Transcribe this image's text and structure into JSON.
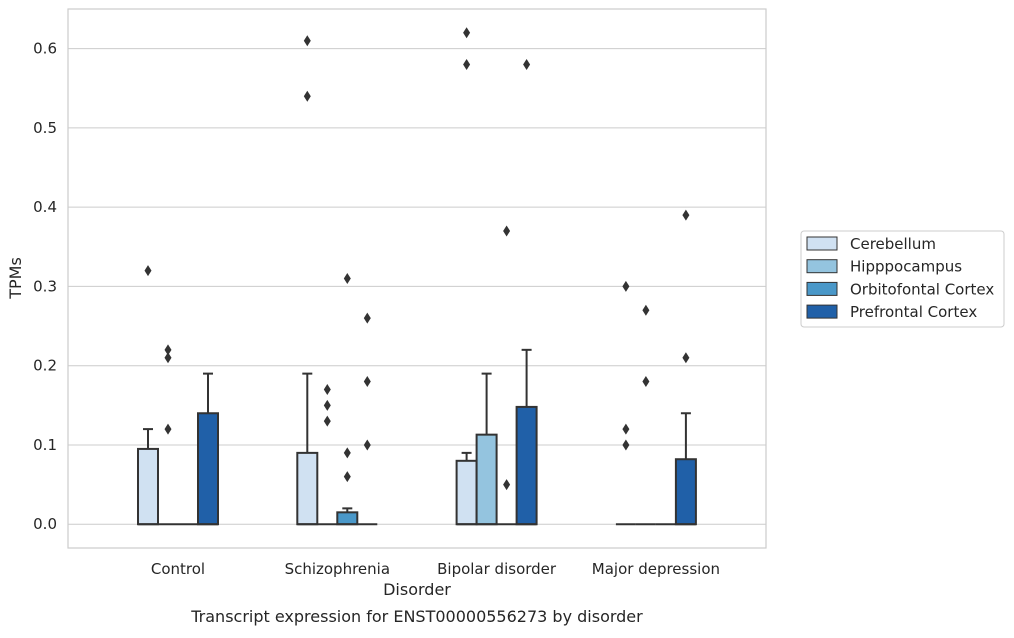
{
  "chart_data": {
    "type": "box",
    "title": "Transcript expression for ENST00000556273 by disorder",
    "xlabel": "Disorder",
    "ylabel": "TPMs",
    "ylim": [
      -0.03,
      0.65
    ],
    "yticks": [
      0.0,
      0.1,
      0.2,
      0.3,
      0.4,
      0.5,
      0.6
    ],
    "ytick_labels": [
      "0.0",
      "0.1",
      "0.2",
      "0.3",
      "0.4",
      "0.5",
      "0.6"
    ],
    "grid": "horizontal",
    "legend_position": "right",
    "categories": [
      "Control",
      "Schizophrenia",
      "Bipolar disorder",
      "Major depression"
    ],
    "series": [
      {
        "name": "Cerebellum",
        "color": "#d0e1f2",
        "boxes": [
          {
            "q1": 0.0,
            "median": 0.0,
            "q3": 0.095,
            "whisker_low": 0.0,
            "whisker_high": 0.12,
            "outliers": [
              0.32
            ]
          },
          {
            "q1": 0.0,
            "median": 0.0,
            "q3": 0.09,
            "whisker_low": 0.0,
            "whisker_high": 0.19,
            "outliers": [
              0.54,
              0.61
            ]
          },
          {
            "q1": 0.0,
            "median": 0.0,
            "q3": 0.08,
            "whisker_low": 0.0,
            "whisker_high": 0.09,
            "outliers": [
              0.58,
              0.62
            ]
          },
          {
            "q1": 0.0,
            "median": 0.0,
            "q3": 0.0,
            "whisker_low": 0.0,
            "whisker_high": 0.0,
            "outliers": [
              0.1,
              0.12,
              0.3
            ]
          }
        ]
      },
      {
        "name": "Hipppocampus",
        "color": "#94c4df",
        "boxes": [
          {
            "q1": 0.0,
            "median": 0.0,
            "q3": 0.0,
            "whisker_low": 0.0,
            "whisker_high": 0.0,
            "outliers": [
              0.12,
              0.21,
              0.22
            ]
          },
          {
            "q1": 0.0,
            "median": 0.0,
            "q3": 0.0,
            "whisker_low": 0.0,
            "whisker_high": 0.0,
            "outliers": [
              0.13,
              0.15,
              0.17
            ]
          },
          {
            "q1": 0.0,
            "median": 0.0,
            "q3": 0.113,
            "whisker_low": 0.0,
            "whisker_high": 0.19,
            "outliers": []
          },
          {
            "q1": 0.0,
            "median": 0.0,
            "q3": 0.0,
            "whisker_low": 0.0,
            "whisker_high": 0.0,
            "outliers": [
              0.18,
              0.27
            ]
          }
        ]
      },
      {
        "name": "Orbitofontal Cortex",
        "color": "#4a98c9",
        "boxes": [
          {
            "q1": 0.0,
            "median": 0.0,
            "q3": 0.0,
            "whisker_low": 0.0,
            "whisker_high": 0.0,
            "outliers": []
          },
          {
            "q1": 0.0,
            "median": 0.0,
            "q3": 0.015,
            "whisker_low": 0.0,
            "whisker_high": 0.02,
            "outliers": [
              0.06,
              0.09,
              0.31
            ]
          },
          {
            "q1": 0.0,
            "median": 0.0,
            "q3": 0.0,
            "whisker_low": 0.0,
            "whisker_high": 0.0,
            "outliers": [
              0.05,
              0.37
            ]
          },
          {
            "q1": 0.0,
            "median": 0.0,
            "q3": 0.0,
            "whisker_low": 0.0,
            "whisker_high": 0.0,
            "outliers": []
          }
        ]
      },
      {
        "name": "Prefrontal Cortex",
        "color": "#2060a8",
        "boxes": [
          {
            "q1": 0.0,
            "median": 0.0,
            "q3": 0.14,
            "whisker_low": 0.0,
            "whisker_high": 0.19,
            "outliers": []
          },
          {
            "q1": 0.0,
            "median": 0.0,
            "q3": 0.0,
            "whisker_low": 0.0,
            "whisker_high": 0.0,
            "outliers": [
              0.1,
              0.18,
              0.26
            ]
          },
          {
            "q1": 0.0,
            "median": 0.0,
            "q3": 0.148,
            "whisker_low": 0.0,
            "whisker_high": 0.22,
            "outliers": [
              0.58
            ]
          },
          {
            "q1": 0.0,
            "median": 0.0,
            "q3": 0.082,
            "whisker_low": 0.0,
            "whisker_high": 0.14,
            "outliers": [
              0.21,
              0.39
            ]
          }
        ]
      }
    ]
  }
}
